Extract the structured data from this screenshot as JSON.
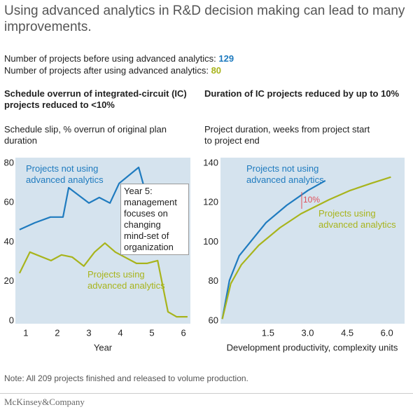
{
  "title": "Using advanced analytics in R&D decision making can lead to many improvements.",
  "stats": [
    {
      "label": "Number of projects before using advanced analytics:",
      "value": 129,
      "color": "#1f7bbf"
    },
    {
      "label": "Number of projects after using advanced analytics:",
      "value": 80,
      "color": "#a8b41c"
    }
  ],
  "chart_data": [
    {
      "type": "line",
      "title": "Schedule overrun of integrated-circuit (IC) projects reduced to <10%",
      "subtitle": "Schedule slip, % overrun of original plan duration",
      "xlabel": "Year",
      "annotation": "Year 5: management focuses on changing mind-set of organization",
      "xlim": [
        0.67,
        6.22
      ],
      "xticks": [
        1,
        2,
        3,
        4,
        5,
        6
      ],
      "ylim": [
        0,
        80
      ],
      "yticks": [
        0,
        20,
        40,
        60,
        80
      ],
      "series": [
        {
          "name": "Projects not using advanced analytics",
          "color": "#1f7bbf",
          "x": [
            0.8,
            1.29,
            1.78,
            2.18,
            2.36,
            3.0,
            3.33,
            3.67,
            3.96,
            4.58,
            4.75
          ],
          "values": [
            46.3,
            49.8,
            52.7,
            52.7,
            67.6,
            59.8,
            62.6,
            59.8,
            69.8,
            77.9,
            68
          ]
        },
        {
          "name": "Projects using advanced analytics",
          "color": "#a8b41c",
          "x": [
            0.8,
            1.13,
            1.8,
            2.13,
            2.47,
            2.84,
            3.18,
            3.51,
            3.84,
            4.51,
            4.84,
            5.18,
            5.51,
            5.78,
            6.13
          ],
          "values": [
            24.2,
            34.9,
            30.6,
            33.5,
            32.4,
            27.8,
            34.9,
            39.5,
            34.9,
            29.2,
            29.2,
            30.6,
            4.6,
            2.1,
            2.1
          ]
        }
      ]
    },
    {
      "type": "line",
      "title": "Duration of IC projects reduced by up to 10%",
      "subtitle": "Project duration, weeks from project start to project end",
      "xlabel": "Development productivity, complexity units",
      "annotation": "10%",
      "xlim": [
        -0.3,
        6.67
      ],
      "xticks": [
        1.5,
        {
          "value": 3,
          "label": "3.0"
        },
        4.5,
        {
          "value": 6,
          "label": "6.0"
        }
      ],
      "ylim": [
        60,
        140
      ],
      "yticks": [
        60,
        80,
        100,
        120,
        140
      ],
      "series": [
        {
          "name": "Projects not using advanced analytics",
          "color": "#1f7bbf",
          "x": [
            -0.23,
            0.04,
            0.41,
            0.84,
            1.42,
            2.21,
            3.01,
            3.67
          ],
          "values": [
            61,
            80.6,
            93.1,
            100.2,
            109.8,
            118.7,
            126.2,
            131.2
          ]
        },
        {
          "name": "Projects using advanced analytics",
          "color": "#a8b41c",
          "x": [
            -0.23,
            0.09,
            0.49,
            1.15,
            1.95,
            2.75,
            3.81,
            4.61,
            5.4,
            6.15
          ],
          "values": [
            61,
            78.9,
            88.5,
            98.4,
            107.3,
            114.4,
            121.5,
            126.2,
            129.8,
            133
          ]
        }
      ]
    }
  ],
  "footnote": "Note: All 209 projects finished and released to volume production.",
  "source": "McKinsey&Company"
}
